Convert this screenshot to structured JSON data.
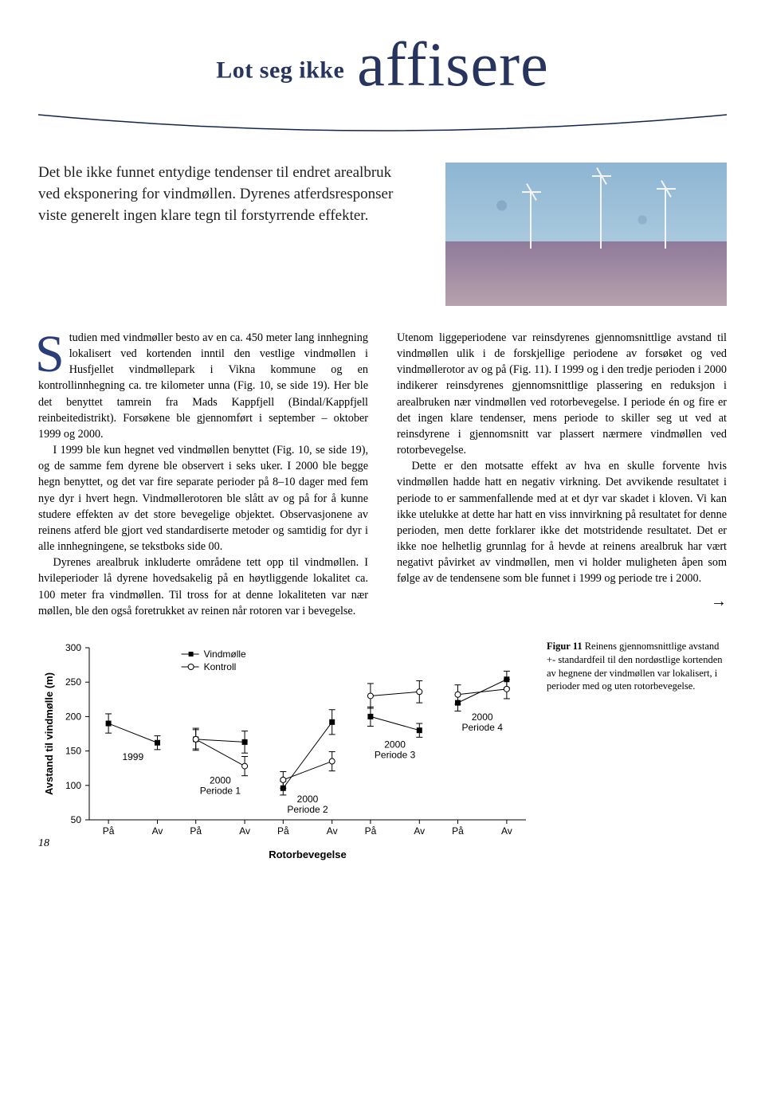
{
  "title": {
    "pre": "Lot seg ikke ",
    "emph": "affisere"
  },
  "intro": "Det ble ikke funnet entydige tendenser til endret arealbruk ved eksponering for vindmøllen. Dyrenes atferdsresponser viste generelt ingen klare tegn til forstyrrende effekter.",
  "leftCol": {
    "dropChar": "S",
    "p1": "tudien med vindmøller besto av en ca. 450 meter lang innhegning lokalisert ved kortenden inntil den vestlige vindmøllen i Husfjellet vindmøllepark i Vikna kommune og en kontrollinnhegning ca. tre kilometer unna (Fig. 10, se side 19). Her ble det benyttet tamrein fra Mads Kappfjell (Bindal/Kappfjell reinbeitedistrikt). Forsøkene ble gjennomført i september – oktober 1999 og 2000.",
    "p2": "I 1999 ble kun hegnet ved vindmøllen benyttet (Fig. 10, se side 19), og de samme fem dyrene ble observert i seks uker. I 2000 ble begge hegn benyttet, og det var fire separate perioder på 8–10 dager med fem nye dyr i hvert hegn. Vindmøllerotoren ble slått av og på for å kunne studere effekten av det store bevegelige objektet. Observasjonene av reinens atferd ble gjort ved standardiserte metoder og samtidig for dyr i alle innhegningene, se tekstboks side 00.",
    "p3": "Dyrenes arealbruk inkluderte områdene tett opp til vindmøllen. I hvileperioder lå dyrene hovedsakelig på en høytliggende lokalitet ca. 100 meter fra vindmøllen. Til tross for at denne lokaliteten var nær møllen, ble den også foretrukket av reinen når rotoren var i bevegelse."
  },
  "rightCol": {
    "p1": "Utenom liggeperiodene var reinsdyrenes gjennomsnittlige avstand til vindmøllen ulik i de forskjellige periodene av forsøket og ved vindmøllerotor av og på (Fig. 11). I 1999 og i den tredje perioden i 2000 indikerer reinsdyrenes gjennomsnittlige plassering en reduksjon i arealbruken nær vindmøllen ved rotorbevegelse. I periode én og fire er det ingen klare tendenser, mens periode to skiller seg ut ved at reinsdyrene i gjennomsnitt var plassert nærmere vindmøllen ved rotorbevegelse.",
    "p2": "Dette er den motsatte effekt av hva en skulle forvente hvis vindmøllen hadde hatt en negativ virkning. Det avvikende resultatet i periode to er sammenfallende med at et dyr var skadet i kloven. Vi kan ikke utelukke at dette har hatt en viss innvirkning på resultatet for denne perioden, men dette forklarer ikke det motstridende resultatet. Det er ikke noe helhetlig grunnlag for å hevde at reinens arealbruk har vært negativt påvirket av vindmøllen, men vi holder muligheten åpen som følge av de tendensene som ble funnet i 1999 og periode tre i 2000.",
    "arrow": "→"
  },
  "caption": {
    "lead": "Figur 11",
    "text": "  Reinens gjennomsnittlige avstand +- standardfeil til den nordøstlige kortenden av hegnene der vindmøllen var lokalisert, i perioder med og uten rotorbevegelse."
  },
  "chart": {
    "type": "line-errorbar-panels",
    "ylabel": "Avstand til vindmølle (m)",
    "xlabel": "Rotorbevegelse",
    "ylim": [
      50,
      300
    ],
    "yticks": [
      50,
      100,
      150,
      200,
      250,
      300
    ],
    "xcats": [
      "På",
      "Av"
    ],
    "legend": {
      "vindmolle": "Vindmølle",
      "kontroll": "Kontroll",
      "marker_vindmolle": "square",
      "marker_kontroll": "circle"
    },
    "colors": {
      "line": "#000000",
      "marker_fill_sq": "#000000",
      "marker_fill_circ": "#ffffff",
      "axis": "#000000",
      "background": "#ffffff"
    },
    "panels": [
      {
        "label": "1999",
        "vindmolle": [
          {
            "x": "På",
            "y": 190,
            "err": 14
          },
          {
            "x": "Av",
            "y": 162,
            "err": 10
          }
        ],
        "kontroll": null
      },
      {
        "label": "2000\nPeriode 1",
        "vindmolle": [
          {
            "x": "På",
            "y": 167,
            "err": 16
          },
          {
            "x": "Av",
            "y": 163,
            "err": 16
          }
        ],
        "kontroll": [
          {
            "x": "På",
            "y": 167,
            "err": 14
          },
          {
            "x": "Av",
            "y": 128,
            "err": 14
          }
        ]
      },
      {
        "label": "2000\nPeriode 2",
        "vindmolle": [
          {
            "x": "På",
            "y": 96,
            "err": 10
          },
          {
            "x": "Av",
            "y": 192,
            "err": 18
          }
        ],
        "kontroll": [
          {
            "x": "På",
            "y": 108,
            "err": 12
          },
          {
            "x": "Av",
            "y": 135,
            "err": 14
          }
        ]
      },
      {
        "label": "2000\nPeriode 3",
        "vindmolle": [
          {
            "x": "På",
            "y": 200,
            "err": 14
          },
          {
            "x": "Av",
            "y": 180,
            "err": 10
          }
        ],
        "kontroll": [
          {
            "x": "På",
            "y": 230,
            "err": 18
          },
          {
            "x": "Av",
            "y": 236,
            "err": 16
          }
        ]
      },
      {
        "label": "2000\nPeriode 4",
        "vindmolle": [
          {
            "x": "På",
            "y": 220,
            "err": 12
          },
          {
            "x": "Av",
            "y": 254,
            "err": 12
          }
        ],
        "kontroll": [
          {
            "x": "På",
            "y": 232,
            "err": 14
          },
          {
            "x": "Av",
            "y": 240,
            "err": 14
          }
        ]
      }
    ]
  },
  "pageNumber": "18"
}
